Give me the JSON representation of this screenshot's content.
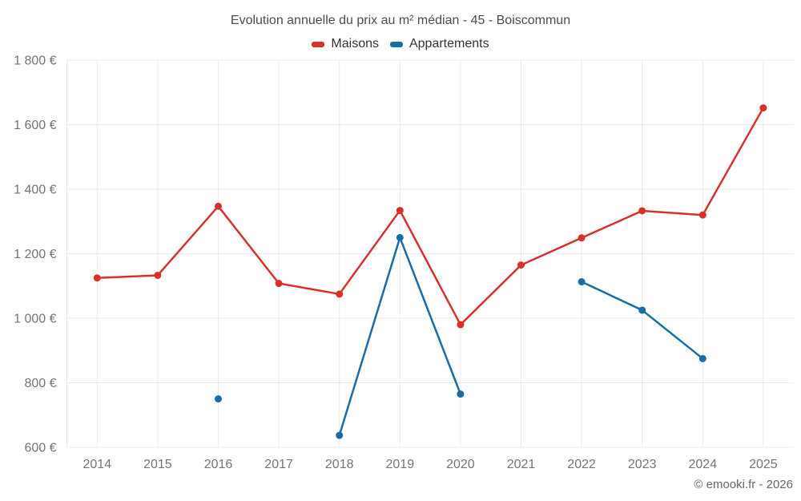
{
  "page": {
    "watermark": "© emooki.fr - 2026"
  },
  "legend": {
    "items": [
      {
        "label": "Maisons",
        "color": "#d8312c"
      },
      {
        "label": "Appartements",
        "color": "#1a6ca4"
      }
    ]
  },
  "chart_data": {
    "type": "line",
    "title": "Evolution annuelle du prix au m² médian - 45 - Boiscommun",
    "x": [
      "2014",
      "2015",
      "2016",
      "2017",
      "2018",
      "2019",
      "2020",
      "2021",
      "2022",
      "2023",
      "2024",
      "2025"
    ],
    "series": [
      {
        "name": "Maisons",
        "color": "#d8312c",
        "values": [
          1125,
          1133,
          1347,
          1108,
          1075,
          1334,
          980,
          1165,
          1249,
          1333,
          1320,
          1652
        ]
      },
      {
        "name": "Appartements",
        "color": "#1a6ca4",
        "values": [
          null,
          null,
          750,
          null,
          637,
          1250,
          765,
          null,
          1113,
          1025,
          875,
          null
        ]
      }
    ],
    "xlabel": "",
    "ylabel": "",
    "ylim": [
      600,
      1800
    ],
    "ytick_step": 200,
    "ytick_labels": [
      "600 €",
      "800 €",
      "1 000 €",
      "1 200 €",
      "1 400 €",
      "1 600 €",
      "1 800 €"
    ],
    "grid": true,
    "legend_position": "top",
    "gridline_color": "#ebebeb"
  }
}
